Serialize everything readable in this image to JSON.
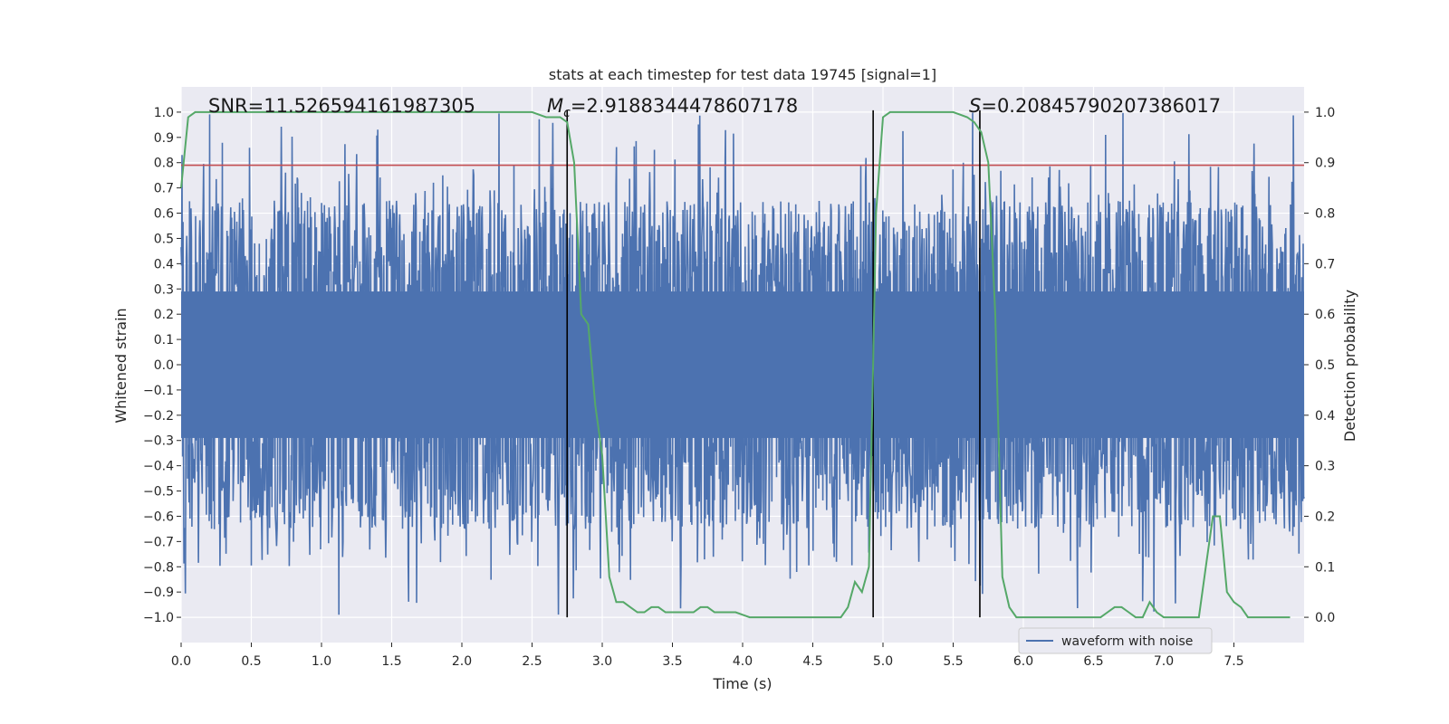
{
  "chart_data": {
    "type": "line",
    "title": "stats at each timestep for test data 19745 [signal=1]",
    "xlabel": "Time (s)",
    "ylabel": "Whitened strain",
    "y2label": "Detection probability",
    "xlim": [
      0.0,
      8.0
    ],
    "ylim": [
      -1.1,
      1.1
    ],
    "y2lim": [
      -0.05,
      1.05
    ],
    "xticks": [
      0.0,
      0.5,
      1.0,
      1.5,
      2.0,
      2.5,
      3.0,
      3.5,
      4.0,
      4.5,
      5.0,
      5.5,
      6.0,
      6.5,
      7.0,
      7.5
    ],
    "xtick_labels": [
      "0.0",
      "0.5",
      "1.0",
      "1.5",
      "2.0",
      "2.5",
      "3.0",
      "3.5",
      "4.0",
      "4.5",
      "5.0",
      "5.5",
      "6.0",
      "6.5",
      "7.0",
      "7.5"
    ],
    "yticks": [
      1.0,
      0.9,
      0.8,
      0.7,
      0.6,
      0.5,
      0.4,
      0.3,
      0.2,
      0.1,
      0.0,
      -0.1,
      -0.2,
      -0.3,
      -0.4,
      -0.5,
      -0.6,
      -0.7,
      -0.8,
      -0.9,
      -1.0
    ],
    "ytick_labels": [
      "1.0",
      "0.9",
      "0.8",
      "0.7",
      "0.6",
      "0.5",
      "0.4",
      "0.3",
      "0.2",
      "0.1",
      "0.0",
      "−0.1",
      "−0.2",
      "−0.3",
      "−0.4",
      "−0.5",
      "−0.6",
      "−0.7",
      "−0.8",
      "−0.9",
      "−1.0"
    ],
    "y2ticks": [
      1.0,
      0.9,
      0.8,
      0.7,
      0.6,
      0.5,
      0.4,
      0.3,
      0.2,
      0.1,
      0.0
    ],
    "y2tick_labels": [
      "1.0",
      "0.9",
      "0.8",
      "0.7",
      "0.6",
      "0.5",
      "0.4",
      "0.3",
      "0.2",
      "0.1",
      "0.0"
    ],
    "grid": true,
    "legend": {
      "position": "bottom-right",
      "entries": [
        "waveform with noise"
      ]
    },
    "annotations": {
      "snr": "SNR=11.526594161987305",
      "mc_symbol": "M",
      "mc_sub": "c",
      "mc_value": "=2.9188344478607178",
      "s_symbol": "S",
      "s_value": "=0.20845790207386017"
    },
    "waveform": {
      "name": "waveform with noise",
      "color": "#4c72b0",
      "x_range": [
        0.0,
        8.0
      ],
      "envelope_upper_approx": 0.62,
      "envelope_lower_approx": -0.6,
      "peak_max": 1.0,
      "peak_min": -1.0
    },
    "threshold": {
      "value": 0.79,
      "color": "#c44e52",
      "axis": "left"
    },
    "vertical_lines": {
      "x": [
        2.75,
        4.93,
        5.69
      ],
      "color": "#000000"
    },
    "detection_probability": {
      "name": "detection probability",
      "color": "#55a868",
      "axis": "right",
      "x": [
        0.0,
        0.05,
        0.1,
        0.15,
        0.25,
        0.5,
        1.0,
        1.5,
        2.0,
        2.5,
        2.6,
        2.7,
        2.75,
        2.8,
        2.85,
        2.9,
        2.95,
        3.0,
        3.05,
        3.1,
        3.15,
        3.2,
        3.25,
        3.3,
        3.35,
        3.4,
        3.45,
        3.5,
        3.55,
        3.6,
        3.65,
        3.7,
        3.75,
        3.8,
        3.85,
        3.9,
        3.95,
        4.0,
        4.05,
        4.1,
        4.2,
        4.3,
        4.4,
        4.5,
        4.6,
        4.7,
        4.75,
        4.8,
        4.85,
        4.9,
        4.93,
        4.95,
        5.0,
        5.05,
        5.1,
        5.3,
        5.5,
        5.6,
        5.65,
        5.7,
        5.75,
        5.8,
        5.85,
        5.9,
        5.95,
        6.0,
        6.1,
        6.2,
        6.3,
        6.4,
        6.5,
        6.55,
        6.6,
        6.65,
        6.7,
        6.75,
        6.8,
        6.85,
        6.9,
        6.95,
        7.0,
        7.05,
        7.1,
        7.15,
        7.2,
        7.25,
        7.3,
        7.35,
        7.4,
        7.45,
        7.5,
        7.55,
        7.6,
        7.7,
        7.75,
        7.8,
        7.85,
        7.9
      ],
      "values": [
        0.85,
        0.99,
        1.0,
        1.0,
        1.0,
        1.0,
        1.0,
        1.0,
        1.0,
        1.0,
        0.99,
        0.99,
        0.98,
        0.9,
        0.6,
        0.58,
        0.42,
        0.32,
        0.08,
        0.03,
        0.03,
        0.02,
        0.01,
        0.01,
        0.02,
        0.02,
        0.01,
        0.01,
        0.01,
        0.01,
        0.01,
        0.02,
        0.02,
        0.01,
        0.01,
        0.01,
        0.01,
        0.005,
        0.0,
        0.0,
        0.0,
        0.0,
        0.0,
        0.0,
        0.0,
        0.0,
        0.02,
        0.07,
        0.05,
        0.1,
        0.5,
        0.8,
        0.99,
        1.0,
        1.0,
        1.0,
        1.0,
        0.99,
        0.98,
        0.96,
        0.9,
        0.6,
        0.08,
        0.02,
        0.0,
        0.0,
        0.0,
        0.0,
        0.0,
        0.0,
        0.0,
        0.0,
        0.01,
        0.02,
        0.02,
        0.01,
        0.0,
        0.0,
        0.03,
        0.01,
        0.0,
        0.0,
        0.0,
        0.0,
        0.0,
        0.0,
        0.1,
        0.2,
        0.2,
        0.05,
        0.03,
        0.02,
        0.0,
        0.0,
        0.0,
        0.0,
        0.0,
        0.0
      ]
    }
  }
}
